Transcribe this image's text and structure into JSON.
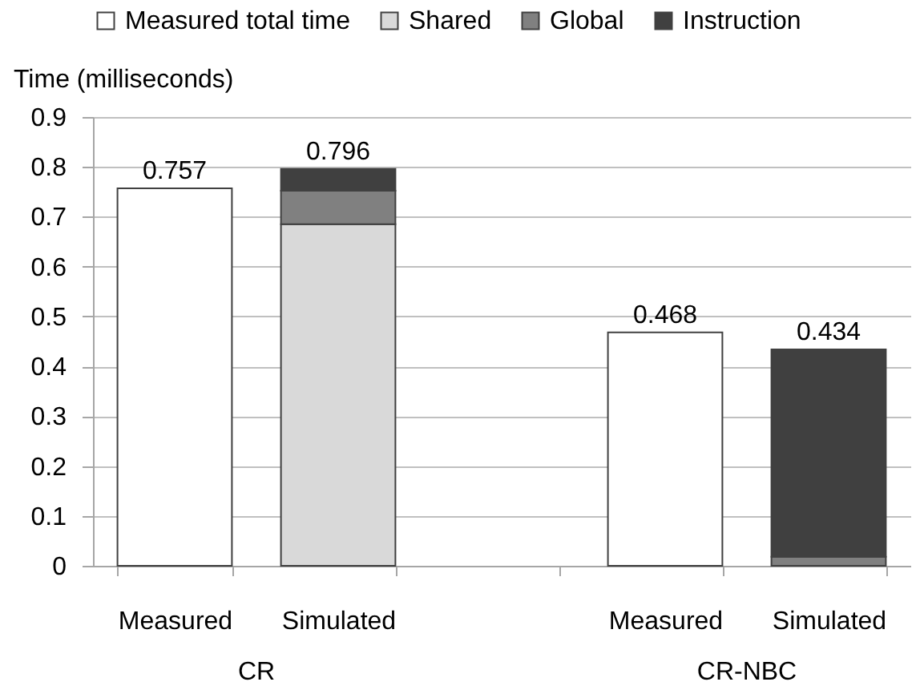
{
  "chart_data": {
    "type": "bar",
    "stacked": true,
    "ylabel": "Time (milliseconds)",
    "categories": [
      "Measured",
      "Simulated",
      null,
      "Measured",
      "Simulated"
    ],
    "series": [
      {
        "name": "Measured total time",
        "color": "#ffffff",
        "values": [
          0.757,
          null,
          null,
          0.468,
          null
        ]
      },
      {
        "name": "Shared",
        "color": "#d9d9d9",
        "values": [
          null,
          0.685,
          null,
          null,
          null
        ]
      },
      {
        "name": "Global",
        "color": "#808080",
        "values": [
          null,
          0.067,
          null,
          null,
          0.018
        ]
      },
      {
        "name": "Instruction",
        "color": "#404040",
        "values": [
          null,
          0.044,
          null,
          null,
          0.416
        ]
      }
    ],
    "totals": [
      "0.757",
      "0.796",
      null,
      "0.468",
      "0.434"
    ],
    "annotations": [
      "CR",
      "CR-NBC"
    ],
    "ylim": [
      0,
      0.9
    ],
    "yticks": [
      0,
      0.1,
      0.2,
      0.3,
      0.4,
      0.5,
      0.6,
      0.7,
      0.8,
      0.9
    ],
    "grid": "y",
    "legend": "top"
  }
}
